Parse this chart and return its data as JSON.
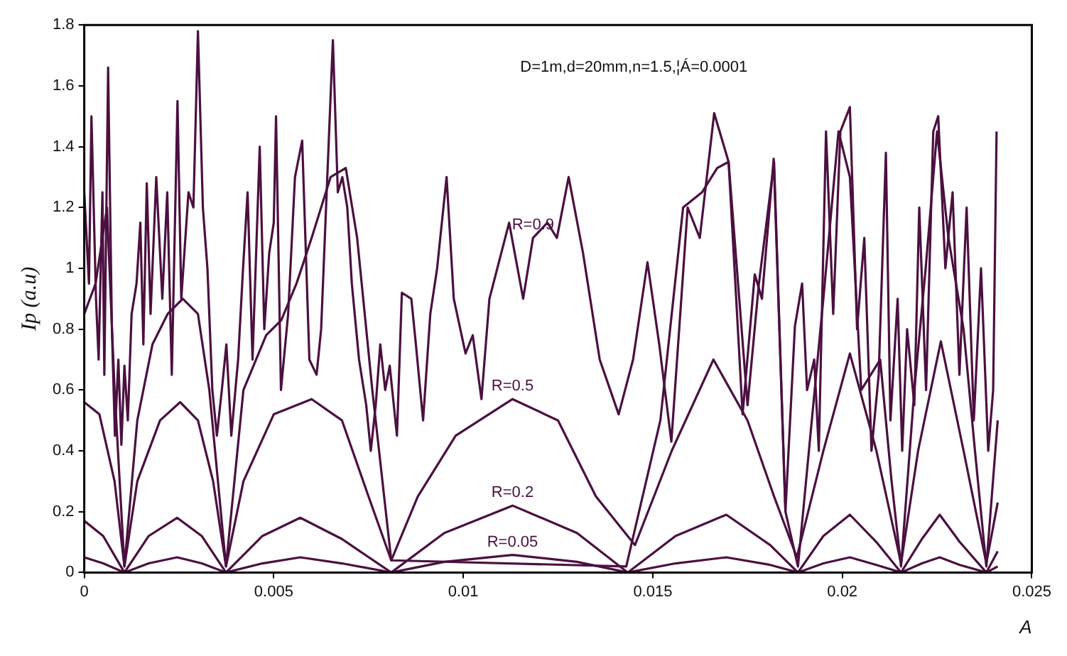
{
  "chart_data": {
    "type": "line",
    "xlabel": "A",
    "ylabel": "Ip (a.u)",
    "xlim": [
      0,
      0.025
    ],
    "ylim": [
      0,
      1.8
    ],
    "xticks": [
      0,
      0.005,
      0.01,
      0.015,
      0.02,
      0.025
    ],
    "yticks": [
      0,
      0.2,
      0.4,
      0.6,
      0.8,
      1,
      1.2,
      1.4,
      1.6,
      1.8
    ],
    "marker": "none",
    "line_style": "solid",
    "annotations": [
      "D=1m,d=20mm,n=1.5,¦Á=0.0001"
    ],
    "series": [
      {
        "name": "R=0.9",
        "color": "#4b1040",
        "x": [
          0,
          0.000125,
          0.00019,
          0.00031,
          0.00038,
          0.00048,
          0.00053,
          0.00063,
          0.00073,
          0.00081,
          0.0009,
          0.00098,
          0.00106,
          0.00115,
          0.00125,
          0.00138,
          0.00148,
          0.00156,
          0.00165,
          0.00175,
          0.0019,
          0.00206,
          0.00219,
          0.00231,
          0.00246,
          0.00256,
          0.00275,
          0.00288,
          0.003,
          0.00313,
          0.00325,
          0.00338,
          0.0035,
          0.00363,
          0.00375,
          0.00388,
          0.00406,
          0.00419,
          0.00431,
          0.00444,
          0.00463,
          0.00475,
          0.00488,
          0.005,
          0.00506,
          0.00519,
          0.00538,
          0.00556,
          0.00575,
          0.00594,
          0.00613,
          0.00625,
          0.00638,
          0.00656,
          0.00669,
          0.00681,
          0.00694,
          0.00706,
          0.00725,
          0.00744,
          0.00756,
          0.00769,
          0.00781,
          0.00794,
          0.00806,
          0.00825,
          0.00838,
          0.00863,
          0.00875,
          0.00894,
          0.00913,
          0.00931,
          0.00956,
          0.00975,
          0.01006,
          0.01025,
          0.01048,
          0.01069,
          0.01121,
          0.01158,
          0.01184,
          0.01222,
          0.01247,
          0.01278,
          0.01316,
          0.0136,
          0.0141,
          0.01448,
          0.01486,
          0.01517,
          0.01549,
          0.01592,
          0.01624,
          0.01662,
          0.017,
          0.01737,
          0.01769,
          0.01788,
          0.01819,
          0.0185,
          0.01875,
          0.01894,
          0.01907,
          0.01926,
          0.01938,
          0.01957,
          0.01976,
          0.01995,
          0.0202,
          0.02039,
          0.02058,
          0.02077,
          0.02096,
          0.02115,
          0.02127,
          0.02146,
          0.02158,
          0.02171,
          0.0219,
          0.02203,
          0.02221,
          0.0224,
          0.02253,
          0.02272,
          0.02291,
          0.02309,
          0.02328,
          0.02347,
          0.02366,
          0.02385,
          0.02398,
          0.02407
        ],
        "values": [
          1.25,
          0.95,
          1.5,
          0.9,
          0.7,
          1.25,
          0.65,
          1.66,
          0.8,
          0.45,
          0.7,
          0.42,
          0.68,
          0.5,
          0.85,
          0.95,
          1.15,
          0.75,
          1.28,
          0.85,
          1.3,
          0.9,
          1.25,
          0.65,
          1.55,
          0.9,
          1.25,
          1.2,
          1.78,
          1.2,
          1.0,
          0.6,
          0.45,
          0.6,
          0.75,
          0.45,
          0.7,
          1.0,
          1.25,
          0.7,
          1.4,
          0.8,
          1.05,
          1.15,
          1.5,
          0.6,
          0.85,
          1.3,
          1.42,
          0.7,
          0.65,
          0.8,
          1.2,
          1.75,
          1.25,
          1.3,
          1.2,
          0.95,
          0.7,
          0.55,
          0.4,
          0.55,
          0.75,
          0.6,
          0.68,
          0.45,
          0.92,
          0.9,
          0.75,
          0.5,
          0.85,
          1.0,
          1.3,
          0.9,
          0.72,
          0.78,
          0.57,
          0.9,
          1.15,
          0.9,
          1.1,
          1.15,
          1.1,
          1.3,
          1.05,
          0.7,
          0.52,
          0.7,
          1.02,
          0.75,
          0.43,
          1.2,
          1.1,
          1.51,
          1.35,
          0.52,
          0.98,
          0.9,
          1.36,
          0.2,
          0.81,
          0.95,
          0.6,
          0.7,
          0.4,
          1.45,
          0.85,
          1.45,
          1.53,
          0.8,
          1.1,
          0.4,
          0.65,
          1.38,
          0.5,
          0.9,
          0.4,
          0.8,
          0.55,
          1.2,
          0.6,
          1.45,
          1.5,
          1.0,
          1.25,
          0.65,
          1.2,
          0.5,
          1.0,
          0.4,
          0.6,
          1.45
        ]
      },
      {
        "color": "#4b1040",
        "x": [
          0,
          0.0003,
          0.0006,
          0.0008,
          0.00106,
          0.0014,
          0.0018,
          0.0022,
          0.0026,
          0.003,
          0.0033,
          0.00374,
          0.0042,
          0.0048,
          0.0052,
          0.0056,
          0.006,
          0.0065,
          0.0069,
          0.0072,
          0.0076,
          0.0081,
          0.0143,
          0.0152,
          0.0158,
          0.0163,
          0.0167,
          0.017,
          0.0175,
          0.0178,
          0.0182,
          0.0185,
          0.01883,
          0.0195,
          0.0199,
          0.0202,
          0.0205,
          0.021,
          0.0213,
          0.02155,
          0.0219,
          0.0222,
          0.0225,
          0.0228,
          0.0232,
          0.0235,
          0.0238,
          0.0241
        ],
        "values": [
          0.85,
          0.95,
          1.2,
          0.6,
          0.02,
          0.5,
          0.75,
          0.85,
          0.9,
          0.85,
          0.6,
          0.02,
          0.6,
          0.78,
          0.83,
          0.95,
          1.1,
          1.3,
          1.33,
          1.1,
          0.6,
          0.04,
          0.02,
          0.5,
          1.2,
          1.25,
          1.33,
          1.35,
          0.55,
          0.95,
          1.35,
          0.2,
          0.02,
          0.9,
          1.45,
          1.3,
          0.6,
          0.7,
          0.3,
          0.02,
          0.6,
          1.0,
          1.45,
          1.1,
          0.8,
          0.4,
          0.02,
          0.5
        ]
      },
      {
        "name": "R=0.5",
        "color": "#4b1040",
        "x": [
          0,
          0.0004,
          0.0008,
          0.00106,
          0.0014,
          0.002,
          0.00253,
          0.003,
          0.0034,
          0.00374,
          0.0042,
          0.005,
          0.006,
          0.0068,
          0.0075,
          0.0081,
          0.0088,
          0.0098,
          0.0113,
          0.0125,
          0.0135,
          0.01453,
          0.0155,
          0.0166,
          0.0175,
          0.0182,
          0.0188,
          0.0195,
          0.0202,
          0.0209,
          0.02155,
          0.022,
          0.0226,
          0.0232,
          0.0238,
          0.0241
        ],
        "values": [
          0.56,
          0.52,
          0.3,
          0.02,
          0.3,
          0.5,
          0.56,
          0.5,
          0.3,
          0.02,
          0.3,
          0.52,
          0.57,
          0.5,
          0.25,
          0.04,
          0.25,
          0.45,
          0.57,
          0.5,
          0.25,
          0.09,
          0.4,
          0.7,
          0.5,
          0.25,
          0.05,
          0.4,
          0.72,
          0.4,
          0.03,
          0.4,
          0.76,
          0.4,
          0.03,
          0.23
        ]
      },
      {
        "color": "#4b1040",
        "x": [
          0,
          0.0005,
          0.00106,
          0.0017,
          0.00245,
          0.0031,
          0.00374,
          0.0047,
          0.0057,
          0.0068,
          0.0081,
          0.0095,
          0.0113,
          0.013,
          0.01434,
          0.0156,
          0.01694,
          0.0181,
          0.01883,
          0.0195,
          0.0202,
          0.0209,
          0.02155,
          0.0221,
          0.02257,
          0.0231,
          0.0238,
          0.0241
        ],
        "name": "R=0.2",
        "values": [
          0.17,
          0.12,
          0.0,
          0.12,
          0.18,
          0.12,
          0.0,
          0.12,
          0.18,
          0.11,
          0.0,
          0.13,
          0.22,
          0.13,
          0.0,
          0.12,
          0.19,
          0.09,
          0.0,
          0.12,
          0.19,
          0.1,
          0.0,
          0.11,
          0.19,
          0.1,
          0.0,
          0.07
        ]
      },
      {
        "color": "#4b1040",
        "x": [
          0,
          0.0005,
          0.00106,
          0.0017,
          0.00245,
          0.0031,
          0.00374,
          0.0047,
          0.0057,
          0.0068,
          0.0081,
          0.0095,
          0.0113,
          0.013,
          0.01434,
          0.0156,
          0.01694,
          0.0181,
          0.01883,
          0.0195,
          0.0202,
          0.0209,
          0.02155,
          0.0221,
          0.02257,
          0.0231,
          0.0238,
          0.0241
        ],
        "name": "R=0.05",
        "values": [
          0.05,
          0.03,
          0.0,
          0.03,
          0.05,
          0.03,
          0.0,
          0.03,
          0.05,
          0.03,
          0.0,
          0.035,
          0.058,
          0.035,
          0.0,
          0.03,
          0.05,
          0.025,
          0.0,
          0.03,
          0.05,
          0.025,
          0.0,
          0.03,
          0.05,
          0.025,
          0.0,
          0.02
        ]
      }
    ]
  }
}
